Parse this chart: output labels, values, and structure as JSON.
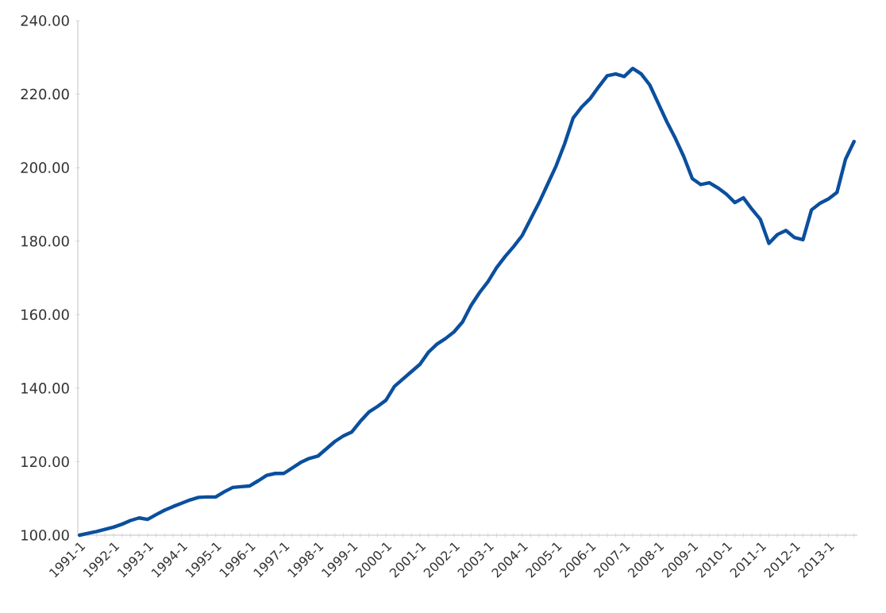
{
  "chart_data": {
    "type": "line",
    "categories": [
      "1991-1",
      null,
      null,
      null,
      "1992-1",
      null,
      null,
      null,
      "1993-1",
      null,
      null,
      null,
      "1994-1",
      null,
      null,
      null,
      "1995-1",
      null,
      null,
      null,
      "1996-1",
      null,
      null,
      null,
      "1997-1",
      null,
      null,
      null,
      "1998-1",
      null,
      null,
      null,
      "1999-1",
      null,
      null,
      null,
      "2000-1",
      null,
      null,
      null,
      "2001-1",
      null,
      null,
      null,
      "2002-1",
      null,
      null,
      null,
      "2003-1",
      null,
      null,
      null,
      "2004-1",
      null,
      null,
      null,
      "2005-1",
      null,
      null,
      null,
      "2006-1",
      null,
      null,
      null,
      "2007-1",
      null,
      null,
      null,
      "2008-1",
      null,
      null,
      null,
      "2009-1",
      null,
      null,
      null,
      "2010-1",
      null,
      null,
      null,
      "2011-1",
      null,
      null,
      null,
      "2012-1",
      null,
      null,
      null,
      "2013-1",
      null,
      null,
      null
    ],
    "series": [
      {
        "color": "#0b4f9e",
        "values": [
          100.0,
          100.5,
          101.0,
          101.6,
          102.2,
          103.0,
          104.0,
          104.7,
          104.3,
          105.6,
          106.8,
          107.8,
          108.7,
          109.6,
          110.3,
          110.4,
          110.4,
          111.8,
          113.0,
          113.2,
          113.4,
          114.8,
          116.3,
          116.8,
          116.8,
          118.3,
          119.8,
          120.9,
          121.5,
          123.5,
          125.5,
          127.0,
          128.1,
          131.0,
          133.5,
          135.0,
          136.7,
          140.5,
          142.5,
          144.5,
          146.5,
          149.8,
          152.0,
          153.5,
          155.3,
          158.0,
          162.5,
          166.0,
          169.0,
          172.8,
          175.8,
          178.5,
          181.5,
          186.0,
          190.5,
          195.5,
          200.5,
          206.5,
          213.5,
          216.5,
          218.8,
          222.0,
          225.0,
          225.5,
          224.8,
          227.0,
          225.5,
          222.5,
          217.5,
          212.5,
          208.0,
          203.0,
          197.0,
          195.4,
          195.9,
          194.5,
          192.8,
          190.5,
          191.8,
          188.7,
          185.9,
          179.4,
          181.8,
          182.9,
          181.0,
          180.4,
          188.5,
          190.3,
          191.5,
          193.3,
          202.3,
          207.1
        ]
      }
    ],
    "ylim": [
      100,
      240
    ],
    "yticks": [
      {
        "value": 100,
        "label": "100.00"
      },
      {
        "value": 120,
        "label": "120.00"
      },
      {
        "value": 140,
        "label": "140.00"
      },
      {
        "value": 160,
        "label": "160.00"
      },
      {
        "value": 180,
        "label": "180.00"
      },
      {
        "value": 200,
        "label": "200.00"
      },
      {
        "value": 220,
        "label": "220.00"
      },
      {
        "value": 240,
        "label": "240.00"
      }
    ],
    "grid": false,
    "marker": "none",
    "line_style": "solid"
  }
}
